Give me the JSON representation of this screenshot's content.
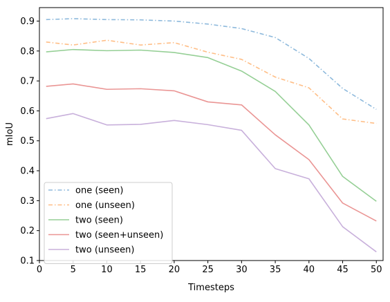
{
  "chart_data": {
    "type": "line",
    "title": "",
    "xlabel": "Timesteps",
    "ylabel": "mIoU",
    "xlim": [
      0,
      51
    ],
    "ylim": [
      0.1,
      0.945
    ],
    "xticks": [
      0,
      5,
      10,
      15,
      20,
      25,
      30,
      35,
      40,
      45,
      50
    ],
    "xtick_labels": [
      "0",
      "5",
      "10",
      "15",
      "20",
      "25",
      "30",
      "35",
      "40",
      "45",
      "50"
    ],
    "yticks": [
      0.1,
      0.2,
      0.3,
      0.4,
      0.5,
      0.6,
      0.7,
      0.8,
      0.9
    ],
    "ytick_labels": [
      "0.1",
      "0.2",
      "0.3",
      "0.4",
      "0.5",
      "0.6",
      "0.7",
      "0.8",
      "0.9"
    ],
    "grid": false,
    "legend_position": "lower-left",
    "x": [
      1,
      5,
      10,
      15,
      20,
      25,
      30,
      35,
      40,
      45,
      50
    ],
    "series": [
      {
        "name": "one (seen)",
        "color": "#8db9dc",
        "dash": "dashdot",
        "values": [
          0.905,
          0.908,
          0.905,
          0.904,
          0.9,
          0.89,
          0.875,
          0.845,
          0.775,
          0.675,
          0.605
        ]
      },
      {
        "name": "one (unseen)",
        "color": "#ffbe86",
        "dash": "dashdot",
        "values": [
          0.83,
          0.82,
          0.836,
          0.82,
          0.828,
          0.796,
          0.772,
          0.713,
          0.677,
          0.573,
          0.558
        ]
      },
      {
        "name": "two (seen)",
        "color": "#95cf95",
        "dash": "solid",
        "values": [
          0.797,
          0.805,
          0.801,
          0.803,
          0.795,
          0.778,
          0.733,
          0.665,
          0.553,
          0.381,
          0.298
        ]
      },
      {
        "name": "two (seen+unseen)",
        "color": "#ea9594",
        "dash": "solid",
        "values": [
          0.682,
          0.69,
          0.672,
          0.674,
          0.667,
          0.63,
          0.62,
          0.52,
          0.437,
          0.292,
          0.232
        ]
      },
      {
        "name": "two (unseen)",
        "color": "#c8b0db",
        "dash": "solid",
        "values": [
          0.574,
          0.591,
          0.553,
          0.555,
          0.568,
          0.554,
          0.535,
          0.407,
          0.373,
          0.213,
          0.129
        ]
      }
    ]
  }
}
